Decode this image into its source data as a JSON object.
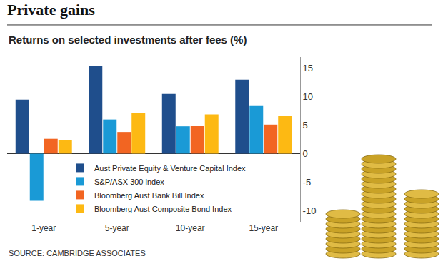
{
  "chart_data": {
    "type": "bar",
    "title": "Private gains",
    "subtitle": "Returns on selected investments after fees (%)",
    "source": "SOURCE: CAMBRIDGE ASSOCIATES",
    "categories": [
      "1-year",
      "5-year",
      "10-year",
      "15-year"
    ],
    "series": [
      {
        "name": "Aust Private Equity & Venture Capital Index",
        "color": "#1f4e8c",
        "values": [
          9.5,
          15.5,
          10.5,
          13.0
        ]
      },
      {
        "name": "S&P/ASX 300 index",
        "color": "#1a9ad6",
        "values": [
          -8.3,
          6.0,
          4.8,
          8.5
        ]
      },
      {
        "name": "Bloomberg Aust Bank Bill Index",
        "color": "#f26522",
        "values": [
          2.6,
          3.8,
          4.9,
          5.1
        ]
      },
      {
        "name": "Bloomberg Aust Composite Bond Index",
        "color": "#fdb913",
        "values": [
          2.4,
          7.2,
          6.9,
          6.7
        ]
      }
    ],
    "ylim": [
      -12,
      17
    ],
    "yticks": [
      -10,
      -5,
      0,
      5,
      10,
      15
    ],
    "grid": false,
    "legend": "bottom"
  }
}
